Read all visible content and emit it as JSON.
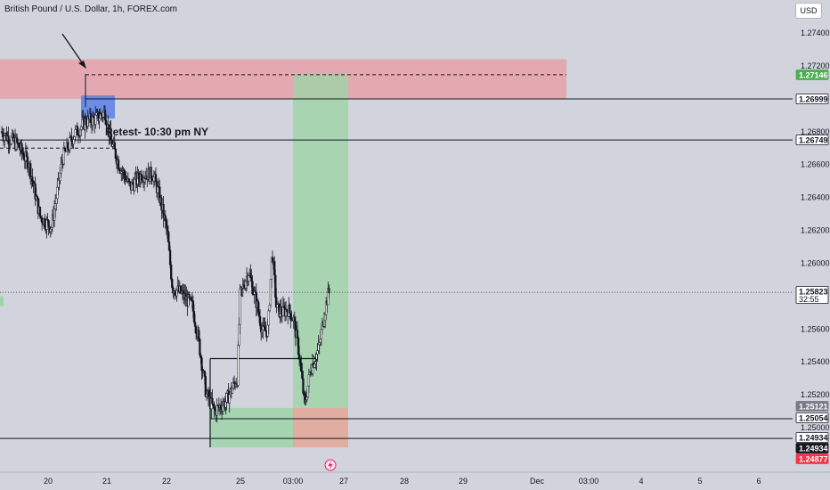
{
  "header": {
    "title": "British Pound / U.S. Dollar, 1h, FOREX.com",
    "currency": "USD"
  },
  "colors": {
    "background": "#d1d4dc",
    "candle": "#131722",
    "supply_zone": "#e8a0a8",
    "demand_zone": "#9fd3a8",
    "profit_zone": "#9fd3a8",
    "loss_zone": "#e2a89a",
    "blue_box": "#5b7fe6",
    "badge_green": "#4caf50",
    "badge_red": "#f23645",
    "badge_gray": "#787b86",
    "badge_dark": "#131722"
  },
  "chart_data": {
    "type": "candlestick",
    "symbol": "GBPUSD",
    "interval": "1h",
    "ylim": [
      1.2484,
      1.2752
    ],
    "y_ticks": [
      "1.27400",
      "1.27200",
      "1.26800",
      "1.26600",
      "1.26400",
      "1.26200",
      "1.26000",
      "1.25600",
      "1.25400",
      "1.25200",
      "1.25000"
    ],
    "x_ticks": [
      "20",
      "21",
      "22",
      "25",
      "03:00",
      "27",
      "28",
      "29",
      "Dec",
      "03:00",
      "4",
      "5",
      "6"
    ],
    "price_path": [
      [
        0,
        1.268
      ],
      [
        3,
        1.2672
      ],
      [
        5,
        1.266
      ],
      [
        7,
        1.2628
      ],
      [
        9,
        1.2622
      ],
      [
        11,
        1.2664
      ],
      [
        13,
        1.2678
      ],
      [
        15,
        1.2686
      ],
      [
        17,
        1.2688
      ],
      [
        18.5,
        1.2692
      ],
      [
        19.5,
        1.2675
      ],
      [
        21,
        1.266
      ],
      [
        23,
        1.2646
      ],
      [
        25,
        1.2654
      ],
      [
        27,
        1.2654
      ],
      [
        28,
        1.2643
      ],
      [
        29.5,
        1.262
      ],
      [
        30.5,
        1.2585
      ],
      [
        32,
        1.2582
      ],
      [
        34,
        1.2574
      ],
      [
        35,
        1.2556
      ],
      [
        36.5,
        1.252
      ],
      [
        38,
        1.251
      ],
      [
        40,
        1.2516
      ],
      [
        42,
        1.253
      ],
      [
        42.5,
        1.258
      ],
      [
        44,
        1.2595
      ],
      [
        45.5,
        1.2575
      ],
      [
        46.5,
        1.2558
      ],
      [
        47.5,
        1.256
      ],
      [
        48.2,
        1.2608
      ],
      [
        49,
        1.2572
      ],
      [
        50,
        1.257
      ],
      [
        51,
        1.2572
      ],
      [
        52,
        1.2566
      ],
      [
        53,
        1.2545
      ],
      [
        54,
        1.2513
      ],
      [
        55,
        1.2535
      ],
      [
        56.5,
        1.2548
      ],
      [
        57.5,
        1.257
      ],
      [
        58.2,
        1.2582
      ]
    ],
    "levels": [
      {
        "price": "1.27146",
        "style": "dashed"
      },
      {
        "price": "1.26999",
        "style": "solid"
      },
      {
        "price": "1.26749",
        "style": "solid"
      },
      {
        "price": "1.25823",
        "style": "dotted"
      },
      {
        "price": "1.25054",
        "style": "solid"
      },
      {
        "price": "1.24934",
        "style": "solid"
      }
    ],
    "zones": {
      "supply": [
        1.2724,
        1.27
      ],
      "long_profit": [
        1.2715,
        1.2512
      ],
      "long_loss": [
        1.2512,
        1.2488
      ],
      "demand": [
        1.2512,
        1.2488
      ]
    },
    "price_badges": [
      {
        "label": "1.27146",
        "kind": "green"
      },
      {
        "label": "1.26999",
        "kind": "outline"
      },
      {
        "label": "1.26749",
        "kind": "outline"
      },
      {
        "label": "1.25823",
        "kind": "outline",
        "sub": "32:55"
      },
      {
        "label": "1.25121",
        "kind": "gray"
      },
      {
        "label": "1.25054",
        "kind": "outline"
      },
      {
        "label": "1.24934",
        "kind": "outline"
      },
      {
        "label": "1.24934",
        "kind": "dark"
      },
      {
        "label": "1.24877",
        "kind": "red"
      }
    ],
    "annotations": {
      "retest": "Retest- 10:30 pm NY"
    }
  }
}
